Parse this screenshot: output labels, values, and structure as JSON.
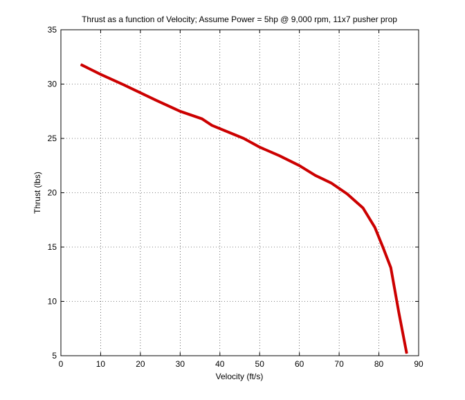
{
  "chart_data": {
    "type": "line",
    "title": "Thrust as a function of Velocity; Assume Power = 5hp @ 9,000 rpm, 11x7 pusher prop",
    "xlabel": "Velocity (ft/s)",
    "ylabel": "Thrust (lbs)",
    "xlim": [
      0,
      90
    ],
    "ylim": [
      5,
      35
    ],
    "xticks": [
      "0",
      "10",
      "20",
      "30",
      "40",
      "50",
      "60",
      "70",
      "80",
      "90"
    ],
    "yticks": [
      "5",
      "10",
      "15",
      "20",
      "25",
      "30",
      "35"
    ],
    "grid": true,
    "series": [
      {
        "color": "#cc0000",
        "x": [
          5,
          10,
          16,
          20,
          24,
          30,
          35.5,
          38,
          42,
          46,
          50,
          55,
          60,
          64,
          68,
          72,
          76,
          79,
          81,
          83,
          85,
          87
        ],
        "y": [
          31.8,
          30.9,
          29.9,
          29.2,
          28.5,
          27.5,
          26.8,
          26.2,
          25.6,
          25.0,
          24.2,
          23.4,
          22.5,
          21.6,
          20.9,
          19.9,
          18.6,
          16.8,
          15.0,
          13.1,
          9.0,
          5.2
        ]
      }
    ]
  }
}
